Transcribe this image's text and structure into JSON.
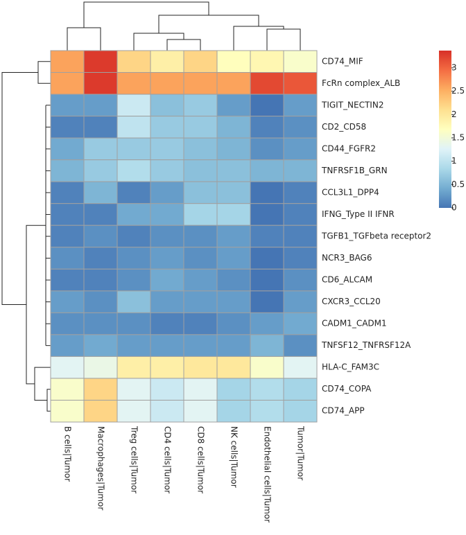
{
  "chart_data": {
    "type": "heatmap",
    "x": [
      "B cells|Tumor",
      "Macrophages|Tumor",
      "Treg cells|Tumor",
      "CD4 cells|Tumor",
      "CD8 cells|Tumor",
      "NK cells|Tumor",
      "Endothelial cells|Tumor",
      "Tumor|Tumor"
    ],
    "y": [
      "CD74_MIF",
      "FcRn complex_ALB",
      "TIGIT_NECTIN2",
      "CD2_CD58",
      "CD44_FGFR2",
      "TNFRSF1B_GRN",
      "CCL3L1_DPP4",
      "IFNG_Type II IFNR",
      "TGFB1_TGFbeta receptor2",
      "NCR3_BAG6",
      "CD6_ALCAM",
      "CXCR3_CCL20",
      "CADM1_CADM1",
      "TNFSF12_TNFRSF12A",
      "HLA-C_FAM3C",
      "CD74_COPA",
      "CD74_APP"
    ],
    "values": [
      [
        2.6,
        3.3,
        2.2,
        1.9,
        2.2,
        1.7,
        1.8,
        1.6
      ],
      [
        2.6,
        3.3,
        2.6,
        2.6,
        2.6,
        2.6,
        3.2,
        3.1
      ],
      [
        0.3,
        0.3,
        1.1,
        0.6,
        0.7,
        0.3,
        0.0,
        0.3
      ],
      [
        0.1,
        0.1,
        1.0,
        0.7,
        0.7,
        0.5,
        0.1,
        0.2
      ],
      [
        0.4,
        0.7,
        0.7,
        0.7,
        0.6,
        0.5,
        0.2,
        0.3
      ],
      [
        0.5,
        0.7,
        0.9,
        0.7,
        0.6,
        0.6,
        0.5,
        0.5
      ],
      [
        0.1,
        0.5,
        0.1,
        0.3,
        0.6,
        0.6,
        0.0,
        0.1
      ],
      [
        0.1,
        0.1,
        0.4,
        0.4,
        0.8,
        0.8,
        0.0,
        0.1
      ],
      [
        0.1,
        0.2,
        0.1,
        0.2,
        0.2,
        0.3,
        0.1,
        0.1
      ],
      [
        0.2,
        0.1,
        0.2,
        0.3,
        0.2,
        0.3,
        0.0,
        0.1
      ],
      [
        0.1,
        0.1,
        0.2,
        0.4,
        0.3,
        0.2,
        0.0,
        0.2
      ],
      [
        0.3,
        0.2,
        0.6,
        0.3,
        0.3,
        0.3,
        0.0,
        0.3
      ],
      [
        0.2,
        0.2,
        0.2,
        0.1,
        0.1,
        0.2,
        0.3,
        0.4
      ],
      [
        0.3,
        0.4,
        0.3,
        0.3,
        0.3,
        0.3,
        0.5,
        0.2
      ],
      [
        1.3,
        1.4,
        1.9,
        1.9,
        2.0,
        2.0,
        1.6,
        1.3
      ],
      [
        1.6,
        2.2,
        1.3,
        1.1,
        1.3,
        0.8,
        0.9,
        0.8
      ],
      [
        1.6,
        2.2,
        1.3,
        1.1,
        1.3,
        0.8,
        0.9,
        0.8
      ]
    ],
    "zlim": [
      0,
      3.37
    ],
    "zticks": [
      0,
      0.5,
      1,
      1.5,
      2,
      2.5,
      3
    ],
    "colorscale": [
      "#4575b4",
      "#74add1",
      "#abd9e9",
      "#e0f3f8",
      "#ffffbf",
      "#fee090",
      "#fdae61",
      "#f46d43",
      "#d73027"
    ]
  }
}
